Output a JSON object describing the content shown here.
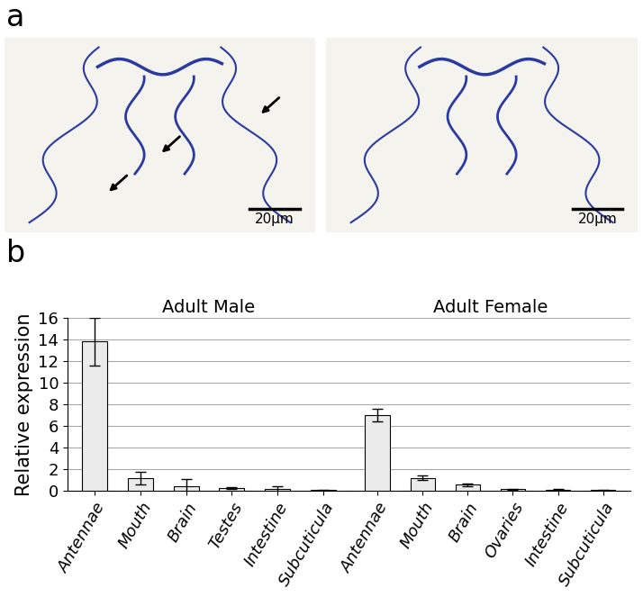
{
  "panel_labels": [
    "a",
    "b"
  ],
  "micrographs": {
    "scale_bars": [
      "20μm",
      "20μm"
    ]
  },
  "chart_data": [
    {
      "type": "bar",
      "title": "Adult Male",
      "y_label": "Relative expression",
      "categories": [
        "Antennae",
        "Mouth",
        "Brain",
        "Testes",
        "Intestine",
        "Subcuticula"
      ],
      "values": [
        13.8,
        1.15,
        0.45,
        0.25,
        0.15,
        0.05
      ],
      "errors": [
        2.2,
        0.6,
        0.65,
        0.1,
        0.25,
        0.03
      ],
      "color": "#ebebeb",
      "ylim": [
        0,
        16
      ],
      "yticks": [
        0,
        2,
        4,
        6,
        8,
        10,
        12,
        14,
        16
      ],
      "grid": true
    },
    {
      "type": "bar",
      "title": "Adult Female",
      "categories": [
        "Antennae",
        "Mouth",
        "Brain",
        "Ovaries",
        "Intestine",
        "Subcuticula"
      ],
      "values": [
        7.0,
        1.2,
        0.55,
        0.15,
        0.1,
        0.05
      ],
      "errors": [
        0.6,
        0.2,
        0.1,
        0.05,
        0.05,
        0.03
      ],
      "color": "#ebebeb",
      "ylim": [
        0,
        16
      ],
      "yticks": [
        0,
        2,
        4,
        6,
        8,
        10,
        12,
        14,
        16
      ],
      "grid": true,
      "tick_labels": "x"
    }
  ]
}
